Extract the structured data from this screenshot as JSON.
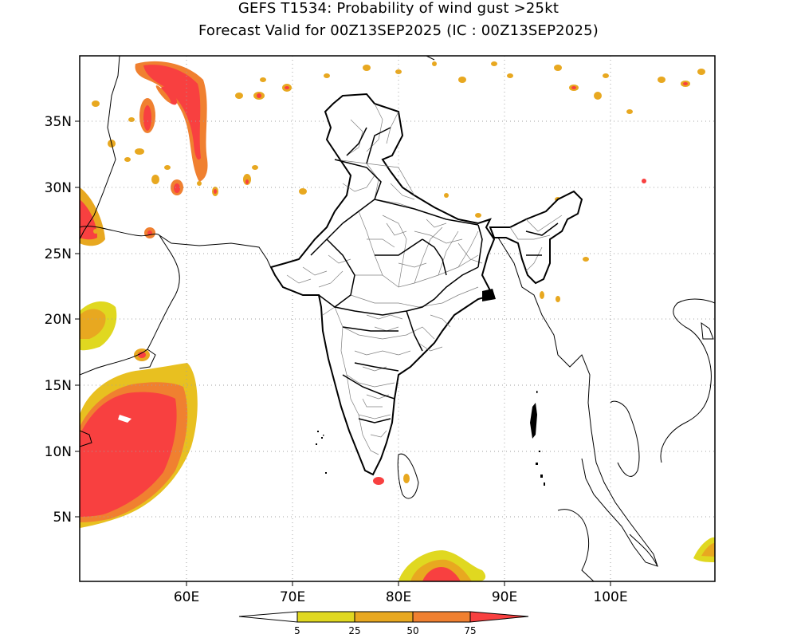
{
  "header": {
    "title": "GEFS T1534: Probability of wind gust >25kt",
    "subtitle": "Forecast Valid for 00Z13SEP2025 (IC : 00Z13SEP2025)"
  },
  "map": {
    "projection": "lat-lon",
    "lon_range": [
      50,
      110
    ],
    "lat_range": [
      0,
      39
    ],
    "lat_ticks": [
      {
        "value": 35,
        "label": "35N"
      },
      {
        "value": 30,
        "label": "30N"
      },
      {
        "value": 25,
        "label": "25N"
      },
      {
        "value": 20,
        "label": "20N"
      },
      {
        "value": 15,
        "label": "15N"
      },
      {
        "value": 10,
        "label": "10N"
      },
      {
        "value": 5,
        "label": "5N"
      }
    ],
    "lon_ticks": [
      {
        "value": 60,
        "label": "60E"
      },
      {
        "value": 70,
        "label": "70E"
      },
      {
        "value": 80,
        "label": "80E"
      },
      {
        "value": 90,
        "label": "90E"
      },
      {
        "value": 100,
        "label": "100E"
      }
    ],
    "gridlines": "dotted"
  },
  "colorbar": {
    "labels": [
      "5",
      "25",
      "50",
      "75"
    ],
    "colors": {
      "low": "#ffffff",
      "c5_25": "#e0d820",
      "c25_50": "#e8a820",
      "c50_75": "#f08030",
      "high": "#f84040"
    }
  }
}
